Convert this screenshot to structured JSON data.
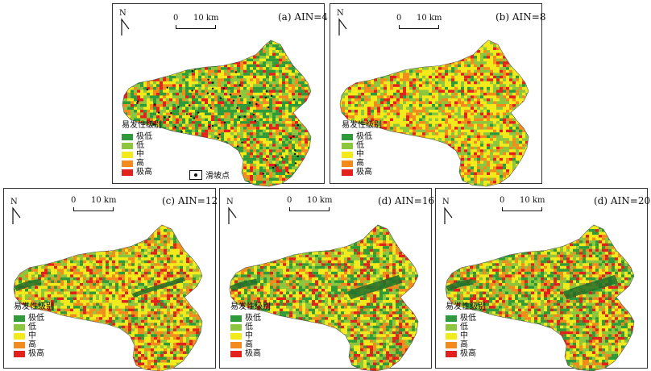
{
  "north_label": "N",
  "scale": {
    "zero": "0",
    "distance": "10 km"
  },
  "legend": {
    "title": "易发性级别",
    "classes": [
      {
        "label": "极低",
        "color": "#2e9a3a"
      },
      {
        "label": "低",
        "color": "#8cc63f"
      },
      {
        "label": "中",
        "color": "#f2ea1b"
      },
      {
        "label": "高",
        "color": "#f28a1e"
      },
      {
        "label": "极高",
        "color": "#e3211c"
      }
    ]
  },
  "landslide_point_label": "滑坡点",
  "panels": [
    {
      "title": "(a) AIN=4"
    },
    {
      "title": "(b) AIN=8"
    },
    {
      "title": "(c) AIN=12"
    },
    {
      "title": "(d) AIN=16"
    },
    {
      "title": "(d) AIN=20"
    }
  ]
}
